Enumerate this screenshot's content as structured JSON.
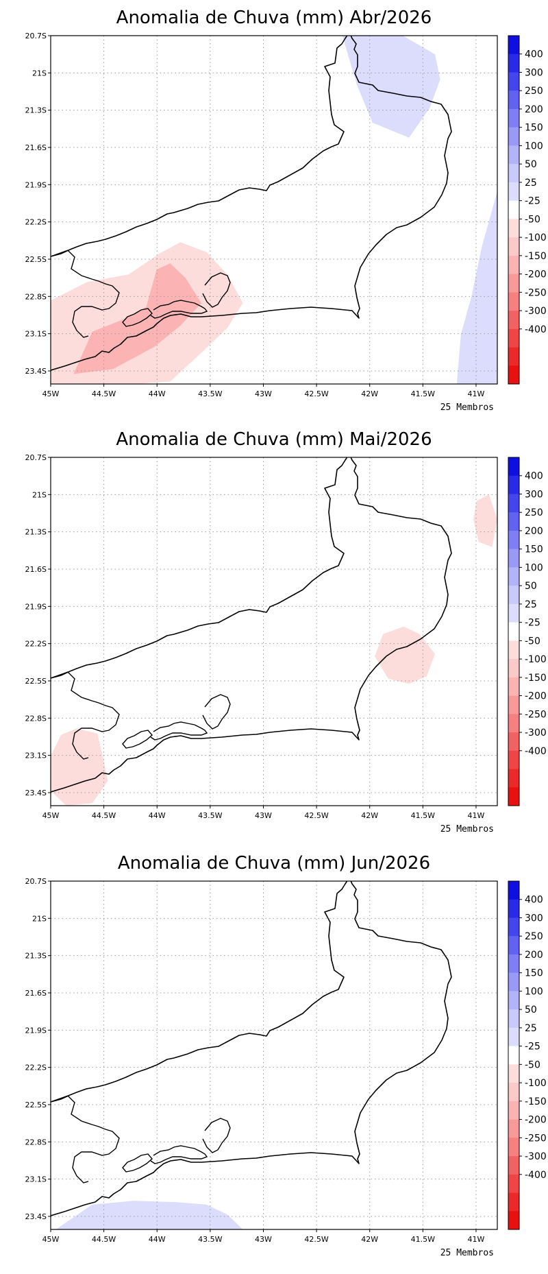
{
  "colors": {
    "neg": [
      "#fddcdc",
      "#fcc9c9",
      "#fbb3b3",
      "#f89a9a",
      "#f67f7f",
      "#f36262",
      "#f04545",
      "#ec2929",
      "#e81010"
    ],
    "pos": [
      "#dcdcfd",
      "#c9c9fc",
      "#b3b3fa",
      "#9999f7",
      "#7f7ff5",
      "#6262f2",
      "#4545ee",
      "#2929e8",
      "#0f0fe0"
    ],
    "border": "#000000",
    "grid": "#9a9a9a"
  },
  "map": {
    "y_ticks": [
      "20.7S",
      "21S",
      "21.3S",
      "21.6S",
      "21.9S",
      "22.2S",
      "22.5S",
      "22.8S",
      "23.1S",
      "23.4S"
    ],
    "x_ticks": [
      "45W",
      "44.5W",
      "44W",
      "43.5W",
      "43W",
      "42.5W",
      "42W",
      "41.5W",
      "41W"
    ],
    "lon_range": [
      -45,
      -40.7
    ],
    "lat_range": [
      -23.5,
      -20.7
    ]
  },
  "colorbar": {
    "labels": [
      "400",
      "300",
      "250",
      "200",
      "150",
      "100",
      "50",
      "25",
      "-25",
      "-50",
      "-100",
      "-150",
      "-200",
      "-250",
      "-300",
      "-400"
    ]
  },
  "panels": [
    {
      "title": "Anomalia de Chuva (mm) Abr/2026",
      "members": "25 Membros",
      "anomalies": [
        {
          "class": "-25 to -50",
          "level": 0,
          "lonlat": [
            [
              -45.0,
              -22.83
            ],
            [
              -44.65,
              -22.68
            ],
            [
              -44.25,
              -22.62
            ],
            [
              -43.95,
              -22.45
            ],
            [
              -43.75,
              -22.36
            ],
            [
              -43.5,
              -22.44
            ],
            [
              -43.3,
              -22.62
            ],
            [
              -43.15,
              -22.85
            ],
            [
              -43.3,
              -23.05
            ],
            [
              -43.55,
              -23.25
            ],
            [
              -43.85,
              -23.48
            ],
            [
              -45.0,
              -23.55
            ]
          ]
        },
        {
          "class": "-50 to -100",
          "level": 2,
          "lonlat": [
            [
              -44.78,
              -23.42
            ],
            [
              -44.6,
              -23.08
            ],
            [
              -44.3,
              -22.98
            ],
            [
              -44.08,
              -22.88
            ],
            [
              -43.98,
              -22.58
            ],
            [
              -43.85,
              -22.53
            ],
            [
              -43.7,
              -22.65
            ],
            [
              -43.55,
              -22.85
            ],
            [
              -43.75,
              -23.03
            ],
            [
              -44.0,
              -23.2
            ],
            [
              -44.4,
              -23.38
            ]
          ]
        },
        {
          "class": "25 to 50",
          "level": 0,
          "lonlat": [
            [
              -42.2,
              -20.68
            ],
            [
              -41.65,
              -20.68
            ],
            [
              -41.3,
              -20.85
            ],
            [
              -41.25,
              -21.05
            ],
            [
              -41.35,
              -21.28
            ],
            [
              -41.55,
              -21.52
            ],
            [
              -41.9,
              -21.4
            ],
            [
              -42.05,
              -21.1
            ]
          ]
        },
        {
          "class": "25 to 50",
          "level": 0,
          "lonlat": [
            [
              -41.1,
              -23.6
            ],
            [
              -41.05,
              -23.1
            ],
            [
              -40.95,
              -22.8
            ],
            [
              -40.85,
              -22.4
            ],
            [
              -40.7,
              -21.95
            ],
            [
              -40.65,
              -23.6
            ]
          ]
        }
      ]
    },
    {
      "title": "Anomalia de Chuva (mm) Mai/2026",
      "members": "25 Membros",
      "anomalies": [
        {
          "class": "-25 to -50",
          "level": 0,
          "lonlat": [
            [
              -41.88,
              -22.3
            ],
            [
              -41.8,
              -22.12
            ],
            [
              -41.6,
              -22.06
            ],
            [
              -41.45,
              -22.12
            ],
            [
              -41.3,
              -22.28
            ],
            [
              -41.38,
              -22.46
            ],
            [
              -41.55,
              -22.52
            ],
            [
              -41.75,
              -22.48
            ]
          ]
        },
        {
          "class": "-25 to -50",
          "level": 0,
          "lonlat": [
            [
              -45.0,
              -23.1
            ],
            [
              -44.9,
              -22.93
            ],
            [
              -44.75,
              -22.88
            ],
            [
              -44.55,
              -22.92
            ],
            [
              -44.5,
              -23.1
            ],
            [
              -44.45,
              -23.3
            ],
            [
              -44.6,
              -23.48
            ],
            [
              -44.85,
              -23.5
            ],
            [
              -45.0,
              -23.38
            ]
          ]
        },
        {
          "class": "-25 to -50",
          "level": 0,
          "lonlat": [
            [
              -40.78,
              -21.0
            ],
            [
              -40.9,
              -21.05
            ],
            [
              -40.93,
              -21.2
            ],
            [
              -40.88,
              -21.38
            ],
            [
              -40.75,
              -21.42
            ],
            [
              -40.7,
              -21.2
            ]
          ]
        }
      ]
    },
    {
      "title": "Anomalia de Chuva (mm) Jun/2026",
      "members": "25 Membros",
      "anomalies": [
        {
          "class": "25 to 50",
          "level": 0,
          "lonlat": [
            [
              -44.95,
              -23.5
            ],
            [
              -44.6,
              -23.3
            ],
            [
              -44.2,
              -23.27
            ],
            [
              -43.8,
              -23.28
            ],
            [
              -43.5,
              -23.3
            ],
            [
              -43.3,
              -23.38
            ],
            [
              -43.15,
              -23.5
            ]
          ]
        }
      ]
    }
  ]
}
